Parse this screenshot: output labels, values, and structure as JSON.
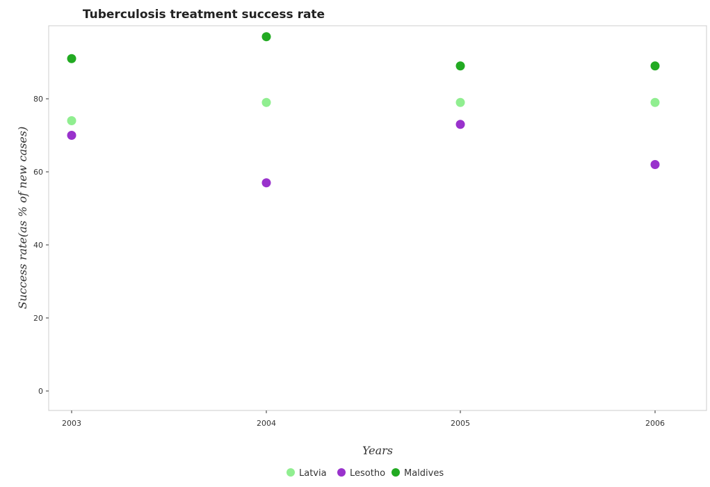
{
  "chart_data": {
    "type": "scatter",
    "title": "Tuberculosis treatment success rate",
    "xlabel": "Years",
    "ylabel": "Success rate(as % of new cases)",
    "categories": [
      "2003",
      "2004",
      "2005",
      "2006"
    ],
    "ylim": [
      0,
      100
    ],
    "yticks": [
      0,
      20,
      40,
      60,
      80
    ],
    "legend_position": "bottom-center",
    "grid": false,
    "series": [
      {
        "name": "Latvia",
        "color": "#90ee90",
        "values": [
          74,
          79,
          79,
          79
        ]
      },
      {
        "name": "Lesotho",
        "color": "#9932cc",
        "values": [
          70,
          57,
          73,
          62
        ]
      },
      {
        "name": "Maldives",
        "color": "#22aa22",
        "values": [
          91,
          97,
          89,
          89
        ]
      }
    ]
  }
}
